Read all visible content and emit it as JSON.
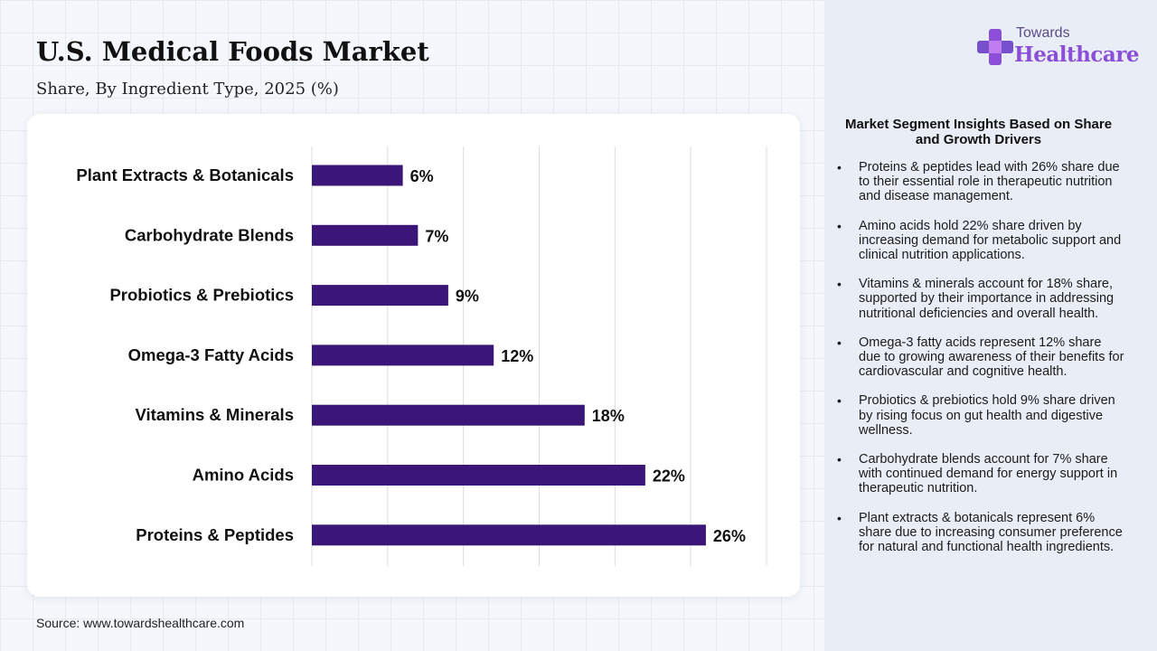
{
  "header": {
    "title": "U.S. Medical Foods Market",
    "subtitle": "Share, By Ingredient Type, 2025 (%)"
  },
  "logo": {
    "line1": "Towards",
    "line2": "Healthcare",
    "icon": "cross-plus-logo-icon"
  },
  "chart_data": {
    "type": "bar",
    "orientation": "horizontal",
    "categories": [
      "Plant Extracts & Botanicals",
      "Carbohydrate Blends",
      "Probiotics & Prebiotics",
      "Omega-3 Fatty Acids",
      "Vitamins & Minerals",
      "Amino Acids",
      "Proteins & Peptides"
    ],
    "values": [
      6,
      7,
      9,
      12,
      18,
      22,
      26
    ],
    "value_labels": [
      "6%",
      "7%",
      "9%",
      "12%",
      "18%",
      "22%",
      "26%"
    ],
    "xlim": [
      0,
      30
    ],
    "grid": true,
    "bar_color": "#3b1577"
  },
  "insights": {
    "title": "Market Segment Insights Based on Share and Growth Drivers",
    "items": [
      "Proteins & peptides lead with 26% share due to their essential role in therapeutic nutrition and disease management.",
      "Amino acids hold 22% share driven by increasing demand for metabolic support and clinical nutrition applications.",
      "Vitamins & minerals account for 18% share, supported by their importance in addressing nutritional deficiencies and overall health.",
      "Omega-3 fatty acids represent 12% share due to growing awareness of their benefits for cardiovascular and cognitive health.",
      "Probiotics & prebiotics hold 9% share driven by rising focus on gut health and digestive wellness.",
      "Carbohydrate blends account for 7% share with continued demand for energy support in therapeutic nutrition.",
      "Plant extracts & botanicals represent 6% share due to increasing consumer preference for natural and functional health ingredients."
    ]
  },
  "footer": {
    "source": "Source: www.towardshealthcare.com"
  }
}
